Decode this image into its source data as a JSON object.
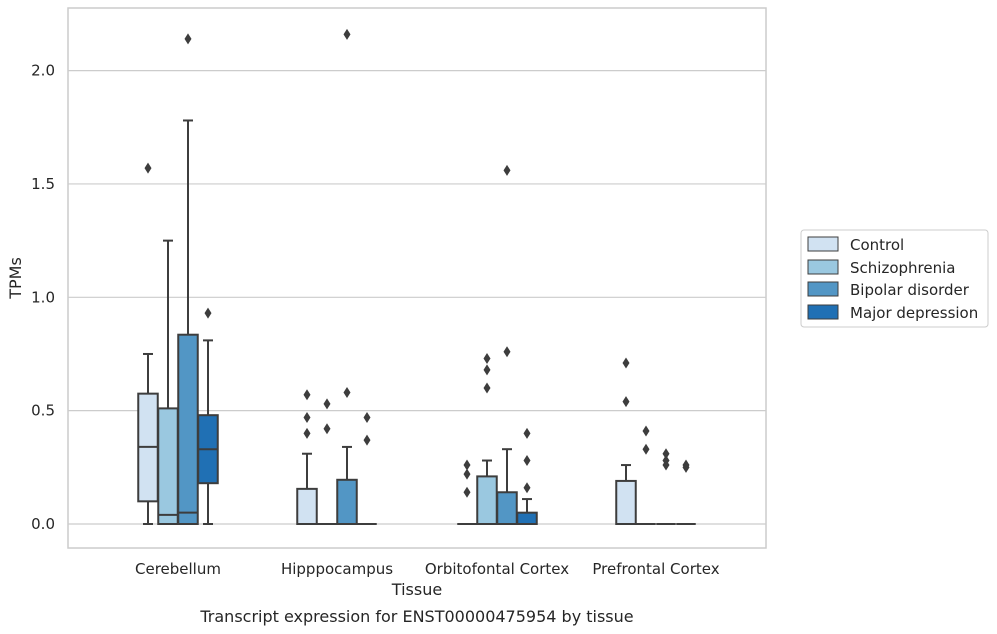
{
  "caption": "Transcript expression for ENST00000475954 by tissue",
  "chart_data": {
    "type": "box",
    "title": "",
    "xlabel": "Tissue",
    "ylabel": "TPMs",
    "ylim": [
      -0.1,
      2.27
    ],
    "yticks": [
      "0.0",
      "0.5",
      "1.0",
      "1.5",
      "2.0"
    ],
    "grid": "horizontal",
    "legend_position": "right",
    "categories": [
      "Cerebellum",
      "Hipppocampus",
      "Orbitofontal Cortex",
      "Prefrontal Cortex"
    ],
    "series": [
      {
        "name": "Control",
        "color": "#d1e2f2",
        "boxes": [
          {
            "whislo": 0.0,
            "q1": 0.1,
            "med": 0.34,
            "q3": 0.575,
            "whishi": 0.75,
            "fliers": [
              1.57
            ]
          },
          {
            "whislo": 0.0,
            "q1": 0.0,
            "med": 0.0,
            "q3": 0.155,
            "whishi": 0.31,
            "fliers": [
              0.4,
              0.47,
              0.57
            ]
          },
          {
            "whislo": 0.0,
            "q1": 0.0,
            "med": 0.0,
            "q3": 0.0,
            "whishi": 0.0,
            "fliers": [
              0.14,
              0.22,
              0.26
            ]
          },
          {
            "whislo": 0.0,
            "q1": 0.0,
            "med": 0.0,
            "q3": 0.19,
            "whishi": 0.26,
            "fliers": [
              0.54,
              0.71
            ]
          }
        ]
      },
      {
        "name": "Schizophrenia",
        "color": "#9ac8e0",
        "boxes": [
          {
            "whislo": 0.0,
            "q1": 0.0,
            "med": 0.04,
            "q3": 0.51,
            "whishi": 1.25,
            "fliers": []
          },
          {
            "whislo": 0.0,
            "q1": 0.0,
            "med": 0.0,
            "q3": 0.0,
            "whishi": 0.0,
            "fliers": [
              0.42,
              0.53
            ]
          },
          {
            "whislo": 0.0,
            "q1": 0.0,
            "med": 0.0,
            "q3": 0.21,
            "whishi": 0.28,
            "fliers": [
              0.6,
              0.68,
              0.73
            ]
          },
          {
            "whislo": 0.0,
            "q1": 0.0,
            "med": 0.0,
            "q3": 0.0,
            "whishi": 0.0,
            "fliers": [
              0.33,
              0.41
            ]
          }
        ]
      },
      {
        "name": "Bipolar disorder",
        "color": "#5296c5",
        "boxes": [
          {
            "whislo": 0.0,
            "q1": 0.0,
            "med": 0.05,
            "q3": 0.835,
            "whishi": 1.78,
            "fliers": [
              2.14
            ]
          },
          {
            "whislo": 0.0,
            "q1": 0.0,
            "med": 0.0,
            "q3": 0.195,
            "whishi": 0.34,
            "fliers": [
              0.58,
              2.16
            ]
          },
          {
            "whislo": 0.0,
            "q1": 0.0,
            "med": 0.0,
            "q3": 0.14,
            "whishi": 0.33,
            "fliers": [
              0.76,
              1.56
            ]
          },
          {
            "whislo": 0.0,
            "q1": 0.0,
            "med": 0.0,
            "q3": 0.0,
            "whishi": 0.0,
            "fliers": [
              0.26,
              0.28,
              0.31
            ]
          }
        ]
      },
      {
        "name": "Major depression",
        "color": "#2070b4",
        "boxes": [
          {
            "whislo": 0.0,
            "q1": 0.18,
            "med": 0.33,
            "q3": 0.48,
            "whishi": 0.81,
            "fliers": [
              0.93
            ]
          },
          {
            "whislo": 0.0,
            "q1": 0.0,
            "med": 0.0,
            "q3": 0.0,
            "whishi": 0.0,
            "fliers": [
              0.37,
              0.47
            ]
          },
          {
            "whislo": 0.0,
            "q1": 0.0,
            "med": 0.0,
            "q3": 0.05,
            "whishi": 0.11,
            "fliers": [
              0.16,
              0.28,
              0.4
            ]
          },
          {
            "whislo": 0.0,
            "q1": 0.0,
            "med": 0.0,
            "q3": 0.0,
            "whishi": 0.0,
            "fliers": [
              0.25,
              0.26
            ]
          }
        ]
      }
    ]
  },
  "colors": {
    "grid": "#cccccc",
    "frame": "#cccccc",
    "edge": "#3d3d3d"
  }
}
